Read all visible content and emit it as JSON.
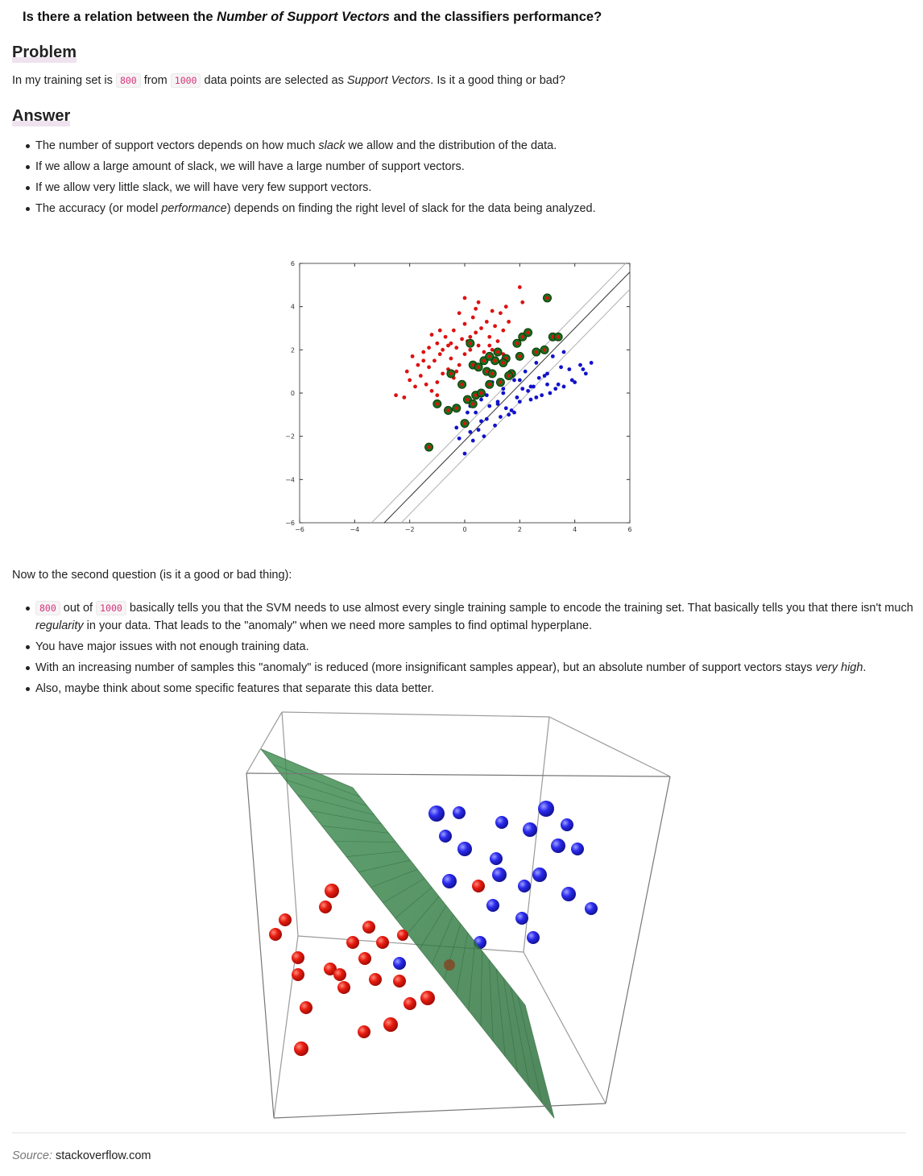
{
  "title": {
    "pre": "Is there a relation between the ",
    "em": "Number of Support Vectors",
    "post": " and the classifiers performance?"
  },
  "problem": {
    "heading": "Problem",
    "t1": "In my training set is ",
    "code1": "800",
    "t2": " from ",
    "code2": "1000",
    "t3": " data points are selected as ",
    "em": "Support Vectors",
    "t4": ". Is it a good thing or bad?"
  },
  "answer": {
    "heading": "Answer",
    "b1": {
      "pre": "The number of support vectors depends on how much ",
      "em": "slack",
      "post": " we allow and the distribution of the data."
    },
    "b2": "If we allow a large amount of slack, we will have a large number of support vectors.",
    "b3": "If we allow very little slack, we will have very few support vectors.",
    "b4": {
      "pre": "The accuracy (or model ",
      "em": "performance",
      "post": ") depends on finding the right level of slack for the data being analyzed."
    }
  },
  "second": {
    "intro": "Now to the second question (is it a good or bad thing):",
    "b1": {
      "code1": "800",
      "t1": " out of ",
      "code2": "1000",
      "t2": " basically tells you that the SVM needs to use almost every single training sample to encode the training set. That basically tells you that there isn't much ",
      "em": "regularity",
      "t3": " in your data. That leads to the \"anomaly\" when we need more samples to find optimal hyperplane."
    },
    "b2": "You have major issues with not enough training data.",
    "b3": {
      "pre": "With an increasing number of samples this \"anomaly\" is reduced (more insignificant samples appear), but an absolute number of support vectors stays ",
      "em": "very high",
      "post": "."
    },
    "b4": "Also, maybe think about some specific features that separate this data better."
  },
  "source": {
    "label": "Source:",
    "text": " stackoverflow.com"
  },
  "chart_data": {
    "type": "scatter",
    "title": "",
    "xlabel": "",
    "ylabel": "",
    "xlim": [
      -6,
      6
    ],
    "ylim": [
      -6,
      6
    ],
    "xticks": [
      "−6",
      "−4",
      "−2",
      "0",
      "2",
      "4",
      "6"
    ],
    "yticks": [
      "6",
      "4",
      "2",
      "0",
      "−2",
      "−4",
      "−6"
    ],
    "grid": false,
    "colors": {
      "red": "#dd1111",
      "blue": "#1111cc",
      "sv_ring": "#1a6e1a",
      "line": "#333333",
      "margin": "#b0b0b0"
    },
    "decision_line": {
      "slope": 1.3,
      "intercept": -2.2
    },
    "margin_lines": [
      {
        "slope": 1.3,
        "intercept": -1.6
      },
      {
        "slope": 1.3,
        "intercept": -3.0
      }
    ],
    "series": [
      {
        "class": "red",
        "x": [
          -2.5,
          -2.2,
          -2.1,
          -2.0,
          -1.9,
          -1.8,
          -1.7,
          -1.6,
          -1.5,
          -1.4,
          -1.3,
          -1.2,
          -1.2,
          -1.1,
          -1.0,
          -1.0,
          -0.9,
          -0.8,
          -0.8,
          -0.7,
          -0.6,
          -0.6,
          -0.5,
          -0.4,
          -0.4,
          -0.3,
          -0.2,
          -0.1,
          0.0,
          0.0,
          0.1,
          0.2,
          0.3,
          0.3,
          0.4,
          0.5,
          0.6,
          0.7,
          0.8,
          0.9,
          1.0,
          1.1,
          1.2,
          1.3,
          1.4,
          1.5,
          0.0,
          0.4,
          -0.2,
          0.5,
          1.0,
          2.0,
          2.1,
          -1.0,
          -1.5,
          -1.3,
          -0.9,
          -0.5,
          0.2,
          0.9,
          1.4,
          -0.3,
          0.7,
          1.6
        ],
        "y": [
          -0.1,
          -0.2,
          1.0,
          0.6,
          1.7,
          0.3,
          1.3,
          0.8,
          1.9,
          0.4,
          1.2,
          2.7,
          0.1,
          1.5,
          0.5,
          2.3,
          1.8,
          2.0,
          0.9,
          2.6,
          1.1,
          2.2,
          1.6,
          2.9,
          0.7,
          2.1,
          1.3,
          2.5,
          3.2,
          1.8,
          2.4,
          2.0,
          3.5,
          1.4,
          2.8,
          2.2,
          3.0,
          1.9,
          3.3,
          2.6,
          2.0,
          3.1,
          2.4,
          3.7,
          2.9,
          4.0,
          4.4,
          3.9,
          3.7,
          4.2,
          3.8,
          4.9,
          4.2,
          -0.1,
          1.5,
          2.1,
          2.9,
          2.3,
          2.6,
          2.2,
          1.8,
          1.0,
          1.6,
          3.3
        ]
      },
      {
        "class": "blue",
        "x": [
          -0.2,
          0.0,
          0.2,
          0.4,
          0.6,
          0.8,
          1.0,
          1.2,
          1.4,
          1.6,
          1.8,
          2.0,
          2.2,
          2.4,
          2.6,
          2.8,
          3.0,
          3.2,
          3.4,
          3.6,
          3.8,
          4.0,
          4.2,
          4.4,
          4.6,
          0.3,
          0.7,
          1.1,
          1.5,
          1.9,
          2.3,
          2.7,
          3.1,
          3.5,
          3.9,
          4.3,
          0.1,
          0.5,
          0.9,
          1.3,
          1.7,
          2.1,
          2.5,
          2.9,
          3.3,
          0.2,
          0.8,
          1.4,
          2.0,
          2.6,
          -0.3,
          0.1,
          0.6,
          1.2,
          1.8,
          2.4,
          3.0,
          3.6
        ],
        "y": [
          -2.1,
          -2.8,
          -1.8,
          -0.9,
          -0.3,
          -1.2,
          0.5,
          -0.5,
          0.2,
          -1.0,
          0.6,
          -0.4,
          1.0,
          0.3,
          1.4,
          -0.1,
          0.9,
          1.7,
          0.4,
          1.9,
          1.1,
          0.5,
          1.3,
          0.9,
          1.4,
          -2.2,
          -2.0,
          -1.5,
          -0.7,
          -0.2,
          0.1,
          0.7,
          0.0,
          1.2,
          0.6,
          1.1,
          -1.4,
          -1.7,
          -0.6,
          -1.1,
          -0.8,
          0.2,
          0.3,
          0.8,
          0.2,
          -0.6,
          -0.1,
          0.0,
          0.6,
          -0.2,
          -1.6,
          -0.9,
          -1.3,
          -0.4,
          -0.9,
          -0.3,
          0.4,
          0.3
        ]
      },
      {
        "class": "support_vectors",
        "x": [
          -1.3,
          -1.0,
          -0.6,
          -0.3,
          0.0,
          0.1,
          0.4,
          0.6,
          0.8,
          0.9,
          1.1,
          1.3,
          1.5,
          1.7,
          1.9,
          2.1,
          2.3,
          2.6,
          3.0,
          3.2,
          3.4,
          -0.1,
          0.3,
          0.7,
          1.2,
          1.6,
          2.0,
          0.5,
          1.4,
          0.2,
          -0.5,
          0.9,
          2.9,
          1.0,
          0.3
        ],
        "y": [
          -2.5,
          -0.5,
          -0.8,
          -0.7,
          -1.4,
          -0.3,
          -0.1,
          0.0,
          1.0,
          0.4,
          1.5,
          0.5,
          1.6,
          0.9,
          2.3,
          2.6,
          2.8,
          1.9,
          4.4,
          2.6,
          2.6,
          0.4,
          1.3,
          1.5,
          1.9,
          0.8,
          1.7,
          1.2,
          1.4,
          2.3,
          0.9,
          1.7,
          2.0,
          0.9,
          -0.5
        ]
      }
    ]
  },
  "plot3d": {
    "colors": {
      "red": "#dd1111",
      "blue": "#2222dd",
      "plane": "#2e7a3e",
      "edge": "#888888"
    }
  }
}
